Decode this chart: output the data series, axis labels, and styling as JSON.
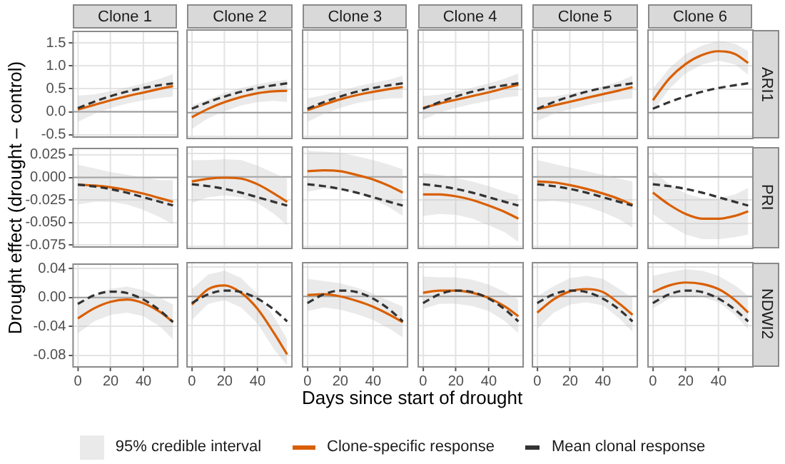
{
  "chart_data": [
    {
      "type": "line",
      "title": "Clone 1",
      "tick_labels": "y",
      "legend": "bottom",
      "annotations": [
        "95% credible interval"
      ],
      "x": [
        0,
        10,
        20,
        30,
        40,
        50,
        58
      ],
      "xlim": [
        -2.9,
        60.9
      ],
      "xticks": [
        {
          "value": 0,
          "label": null
        },
        {
          "value": 20,
          "label": null
        },
        {
          "value": 40,
          "label": null
        }
      ],
      "ylim": [
        -0.55,
        1.75
      ],
      "yticks": [
        {
          "value": -0.5,
          "label": "-0.5"
        },
        {
          "value": 0,
          "label": "0.0"
        },
        {
          "value": 0.5,
          "label": "0.5"
        },
        {
          "value": 1,
          "label": "1.0"
        },
        {
          "value": 1.5,
          "label": "1.5"
        }
      ],
      "grid": true,
      "ref_lines": [
        {
          "axis": "y",
          "value": 0
        }
      ],
      "series": [
        {
          "name": "Clone-specific response",
          "color": "#d95f02",
          "values": [
            0.05,
            0.15,
            0.25,
            0.34,
            0.42,
            0.5,
            0.56
          ],
          "lower": [
            -0.22,
            -0.05,
            0.08,
            0.18,
            0.25,
            0.3,
            0.33
          ],
          "upper": [
            0.35,
            0.38,
            0.45,
            0.53,
            0.62,
            0.72,
            0.82
          ]
        },
        {
          "name": "Mean clonal response",
          "color": "#333333",
          "line_style": "dashed",
          "values": [
            0.08,
            0.22,
            0.34,
            0.44,
            0.52,
            0.58,
            0.62
          ]
        }
      ]
    },
    {
      "type": "line",
      "title": "Clone 2",
      "tick_labels": false,
      "x": [
        0,
        10,
        20,
        30,
        40,
        50,
        58
      ],
      "xlim": [
        -2.9,
        60.9
      ],
      "xticks": [
        {
          "value": 0,
          "label": null
        },
        {
          "value": 20,
          "label": null
        },
        {
          "value": 40,
          "label": null
        }
      ],
      "ylim": [
        -0.55,
        1.75
      ],
      "yticks": [
        {
          "value": -0.5,
          "label": null
        },
        {
          "value": 0,
          "label": null
        },
        {
          "value": 0.5,
          "label": null
        },
        {
          "value": 1,
          "label": null
        },
        {
          "value": 1.5,
          "label": null
        }
      ],
      "grid": true,
      "ref_lines": [
        {
          "axis": "y",
          "value": 0
        }
      ],
      "series": [
        {
          "color": "#d95f02",
          "values": [
            -0.1,
            0.08,
            0.22,
            0.33,
            0.41,
            0.45,
            0.46
          ],
          "lower": [
            -0.35,
            -0.12,
            0.03,
            0.15,
            0.22,
            0.25,
            0.22
          ],
          "upper": [
            0.15,
            0.28,
            0.42,
            0.52,
            0.6,
            0.66,
            0.7
          ]
        },
        {
          "color": "#333333",
          "line_style": "dashed",
          "values": [
            0.08,
            0.22,
            0.34,
            0.44,
            0.52,
            0.58,
            0.62
          ]
        }
      ]
    },
    {
      "type": "line",
      "title": "Clone 3",
      "tick_labels": false,
      "x": [
        0,
        10,
        20,
        30,
        40,
        50,
        58
      ],
      "xlim": [
        -2.9,
        60.9
      ],
      "xticks": [
        {
          "value": 0,
          "label": null
        },
        {
          "value": 20,
          "label": null
        },
        {
          "value": 40,
          "label": null
        }
      ],
      "ylim": [
        -0.55,
        1.75
      ],
      "yticks": [
        {
          "value": -0.5,
          "label": null
        },
        {
          "value": 0,
          "label": null
        },
        {
          "value": 0.5,
          "label": null
        },
        {
          "value": 1,
          "label": null
        },
        {
          "value": 1.5,
          "label": null
        }
      ],
      "grid": true,
      "ref_lines": [
        {
          "axis": "y",
          "value": 0
        }
      ],
      "series": [
        {
          "color": "#d95f02",
          "values": [
            0.05,
            0.17,
            0.28,
            0.37,
            0.44,
            0.5,
            0.54
          ],
          "lower": [
            -0.2,
            -0.03,
            0.1,
            0.2,
            0.26,
            0.3,
            0.3
          ],
          "upper": [
            0.3,
            0.37,
            0.46,
            0.55,
            0.63,
            0.7,
            0.78
          ]
        },
        {
          "color": "#333333",
          "line_style": "dashed",
          "values": [
            0.08,
            0.22,
            0.34,
            0.44,
            0.52,
            0.58,
            0.62
          ]
        }
      ]
    },
    {
      "type": "line",
      "title": "Clone 4",
      "tick_labels": false,
      "x": [
        0,
        10,
        20,
        30,
        40,
        50,
        58
      ],
      "xlim": [
        -2.9,
        60.9
      ],
      "xticks": [
        {
          "value": 0,
          "label": null
        },
        {
          "value": 20,
          "label": null
        },
        {
          "value": 40,
          "label": null
        }
      ],
      "ylim": [
        -0.55,
        1.75
      ],
      "yticks": [
        {
          "value": -0.5,
          "label": null
        },
        {
          "value": 0,
          "label": null
        },
        {
          "value": 0.5,
          "label": null
        },
        {
          "value": 1,
          "label": null
        },
        {
          "value": 1.5,
          "label": null
        }
      ],
      "grid": true,
      "ref_lines": [
        {
          "axis": "y",
          "value": 0
        }
      ],
      "series": [
        {
          "color": "#d95f02",
          "values": [
            0.1,
            0.19,
            0.27,
            0.35,
            0.43,
            0.52,
            0.59
          ],
          "lower": [
            -0.15,
            0.0,
            0.1,
            0.18,
            0.25,
            0.32,
            0.35
          ],
          "upper": [
            0.35,
            0.38,
            0.45,
            0.53,
            0.62,
            0.72,
            0.83
          ]
        },
        {
          "color": "#333333",
          "line_style": "dashed",
          "values": [
            0.08,
            0.22,
            0.34,
            0.44,
            0.52,
            0.58,
            0.62
          ]
        }
      ]
    },
    {
      "type": "line",
      "title": "Clone 5",
      "tick_labels": false,
      "x": [
        0,
        10,
        20,
        30,
        40,
        50,
        58
      ],
      "xlim": [
        -2.9,
        60.9
      ],
      "xticks": [
        {
          "value": 0,
          "label": null
        },
        {
          "value": 20,
          "label": null
        },
        {
          "value": 40,
          "label": null
        }
      ],
      "ylim": [
        -0.55,
        1.75
      ],
      "yticks": [
        {
          "value": -0.5,
          "label": null
        },
        {
          "value": 0,
          "label": null
        },
        {
          "value": 0.5,
          "label": null
        },
        {
          "value": 1,
          "label": null
        },
        {
          "value": 1.5,
          "label": null
        }
      ],
      "grid": true,
      "ref_lines": [
        {
          "axis": "y",
          "value": 0
        }
      ],
      "series": [
        {
          "color": "#d95f02",
          "values": [
            0.07,
            0.15,
            0.23,
            0.31,
            0.39,
            0.47,
            0.54
          ],
          "lower": [
            -0.18,
            -0.03,
            0.07,
            0.15,
            0.22,
            0.27,
            0.3
          ],
          "upper": [
            0.32,
            0.34,
            0.4,
            0.48,
            0.56,
            0.66,
            0.78
          ]
        },
        {
          "color": "#333333",
          "line_style": "dashed",
          "values": [
            0.08,
            0.22,
            0.34,
            0.44,
            0.52,
            0.58,
            0.62
          ]
        }
      ]
    },
    {
      "type": "line",
      "title": "Clone 6",
      "y2label": "ARI1",
      "tick_labels": false,
      "x": [
        0,
        10,
        20,
        30,
        40,
        50,
        58
      ],
      "xlim": [
        -2.9,
        60.9
      ],
      "xticks": [
        {
          "value": 0,
          "label": null
        },
        {
          "value": 20,
          "label": null
        },
        {
          "value": 40,
          "label": null
        }
      ],
      "ylim": [
        -0.55,
        1.75
      ],
      "yticks": [
        {
          "value": -0.5,
          "label": null
        },
        {
          "value": 0,
          "label": null
        },
        {
          "value": 0.5,
          "label": null
        },
        {
          "value": 1,
          "label": null
        },
        {
          "value": 1.5,
          "label": null
        }
      ],
      "grid": true,
      "ref_lines": [
        {
          "axis": "y",
          "value": 0
        }
      ],
      "series": [
        {
          "color": "#d95f02",
          "values": [
            0.26,
            0.72,
            1.03,
            1.22,
            1.3,
            1.24,
            1.05
          ],
          "lower": [
            0.02,
            0.5,
            0.83,
            1.02,
            1.1,
            1.02,
            0.8
          ],
          "upper": [
            0.5,
            0.94,
            1.24,
            1.42,
            1.52,
            1.46,
            1.3
          ]
        },
        {
          "color": "#333333",
          "line_style": "dashed",
          "values": [
            0.08,
            0.22,
            0.34,
            0.44,
            0.52,
            0.58,
            0.62
          ]
        }
      ]
    },
    {
      "type": "line",
      "ylabel": "Drought effect (drought – control)",
      "tick_labels": "y",
      "x": [
        0,
        10,
        20,
        30,
        40,
        50,
        58
      ],
      "xlim": [
        -2.9,
        60.9
      ],
      "xticks": [
        {
          "value": 0,
          "label": null
        },
        {
          "value": 20,
          "label": null
        },
        {
          "value": 40,
          "label": null
        }
      ],
      "ylim": [
        -0.077,
        0.032
      ],
      "yticks": [
        {
          "value": -0.075,
          "label": "-0.075"
        },
        {
          "value": -0.05,
          "label": "-0.050"
        },
        {
          "value": -0.025,
          "label": "-0.025"
        },
        {
          "value": 0,
          "label": "0.000"
        },
        {
          "value": 0.025,
          "label": "0.025"
        }
      ],
      "grid": true,
      "ref_lines": [
        {
          "axis": "y",
          "value": 0
        }
      ],
      "series": [
        {
          "color": "#d95f02",
          "values": [
            -0.008,
            -0.009,
            -0.011,
            -0.014,
            -0.018,
            -0.023,
            -0.027
          ],
          "lower": [
            -0.03,
            -0.027,
            -0.027,
            -0.03,
            -0.036,
            -0.044,
            -0.052
          ],
          "upper": [
            0.014,
            0.01,
            0.006,
            0.003,
            0,
            -0.003,
            -0.003
          ]
        },
        {
          "color": "#333333",
          "line_style": "dashed",
          "values": [
            -0.008,
            -0.01,
            -0.013,
            -0.017,
            -0.022,
            -0.027,
            -0.031
          ]
        }
      ]
    },
    {
      "type": "line",
      "tick_labels": false,
      "x": [
        0,
        10,
        20,
        30,
        40,
        50,
        58
      ],
      "xlim": [
        -2.9,
        60.9
      ],
      "xticks": [
        {
          "value": 0,
          "label": null
        },
        {
          "value": 20,
          "label": null
        },
        {
          "value": 40,
          "label": null
        }
      ],
      "ylim": [
        -0.077,
        0.032
      ],
      "yticks": [
        {
          "value": -0.075,
          "label": null
        },
        {
          "value": -0.05,
          "label": null
        },
        {
          "value": -0.025,
          "label": null
        },
        {
          "value": 0,
          "label": null
        },
        {
          "value": 0.025,
          "label": null
        }
      ],
      "grid": true,
      "ref_lines": [
        {
          "axis": "y",
          "value": 0
        }
      ],
      "series": [
        {
          "color": "#d95f02",
          "values": [
            -0.005,
            -0.002,
            -0.001,
            -0.002,
            -0.008,
            -0.018,
            -0.027
          ],
          "lower": [
            -0.028,
            -0.022,
            -0.02,
            -0.022,
            -0.028,
            -0.04,
            -0.052
          ],
          "upper": [
            0.018,
            0.018,
            0.019,
            0.018,
            0.012,
            0.004,
            -0.002
          ]
        },
        {
          "color": "#333333",
          "line_style": "dashed",
          "values": [
            -0.008,
            -0.01,
            -0.013,
            -0.017,
            -0.022,
            -0.027,
            -0.031
          ]
        }
      ]
    },
    {
      "type": "line",
      "tick_labels": false,
      "x": [
        0,
        10,
        20,
        30,
        40,
        50,
        58
      ],
      "xlim": [
        -2.9,
        60.9
      ],
      "xticks": [
        {
          "value": 0,
          "label": null
        },
        {
          "value": 20,
          "label": null
        },
        {
          "value": 40,
          "label": null
        }
      ],
      "ylim": [
        -0.077,
        0.032
      ],
      "yticks": [
        {
          "value": -0.075,
          "label": null
        },
        {
          "value": -0.05,
          "label": null
        },
        {
          "value": -0.025,
          "label": null
        },
        {
          "value": 0,
          "label": null
        },
        {
          "value": 0.025,
          "label": null
        }
      ],
      "grid": true,
      "ref_lines": [
        {
          "axis": "y",
          "value": 0
        }
      ],
      "series": [
        {
          "color": "#d95f02",
          "values": [
            0.006,
            0.007,
            0.006,
            0.002,
            -0.003,
            -0.01,
            -0.017
          ],
          "lower": [
            -0.016,
            -0.013,
            -0.014,
            -0.018,
            -0.024,
            -0.033,
            -0.042
          ],
          "upper": [
            0.028,
            0.027,
            0.026,
            0.022,
            0.018,
            0.013,
            0.008
          ]
        },
        {
          "color": "#333333",
          "line_style": "dashed",
          "values": [
            -0.008,
            -0.01,
            -0.013,
            -0.017,
            -0.022,
            -0.027,
            -0.031
          ]
        }
      ]
    },
    {
      "type": "line",
      "tick_labels": false,
      "x": [
        0,
        10,
        20,
        30,
        40,
        50,
        58
      ],
      "xlim": [
        -2.9,
        60.9
      ],
      "xticks": [
        {
          "value": 0,
          "label": null
        },
        {
          "value": 20,
          "label": null
        },
        {
          "value": 40,
          "label": null
        }
      ],
      "ylim": [
        -0.077,
        0.032
      ],
      "yticks": [
        {
          "value": -0.075,
          "label": null
        },
        {
          "value": -0.05,
          "label": null
        },
        {
          "value": -0.025,
          "label": null
        },
        {
          "value": 0,
          "label": null
        },
        {
          "value": 0.025,
          "label": null
        }
      ],
      "grid": true,
      "ref_lines": [
        {
          "axis": "y",
          "value": 0
        }
      ],
      "series": [
        {
          "color": "#d95f02",
          "values": [
            -0.019,
            -0.019,
            -0.021,
            -0.025,
            -0.031,
            -0.038,
            -0.045
          ],
          "lower": [
            -0.042,
            -0.04,
            -0.041,
            -0.045,
            -0.052,
            -0.06,
            -0.07
          ],
          "upper": [
            0.004,
            0.002,
            -0.001,
            -0.005,
            -0.01,
            -0.016,
            -0.02
          ]
        },
        {
          "color": "#333333",
          "line_style": "dashed",
          "values": [
            -0.008,
            -0.01,
            -0.013,
            -0.017,
            -0.022,
            -0.027,
            -0.031
          ]
        }
      ]
    },
    {
      "type": "line",
      "tick_labels": false,
      "x": [
        0,
        10,
        20,
        30,
        40,
        50,
        58
      ],
      "xlim": [
        -2.9,
        60.9
      ],
      "xticks": [
        {
          "value": 0,
          "label": null
        },
        {
          "value": 20,
          "label": null
        },
        {
          "value": 40,
          "label": null
        }
      ],
      "ylim": [
        -0.077,
        0.032
      ],
      "yticks": [
        {
          "value": -0.075,
          "label": null
        },
        {
          "value": -0.05,
          "label": null
        },
        {
          "value": -0.025,
          "label": null
        },
        {
          "value": 0,
          "label": null
        },
        {
          "value": 0.025,
          "label": null
        }
      ],
      "grid": true,
      "ref_lines": [
        {
          "axis": "y",
          "value": 0
        }
      ],
      "series": [
        {
          "color": "#d95f02",
          "values": [
            -0.005,
            -0.006,
            -0.009,
            -0.013,
            -0.018,
            -0.024,
            -0.03
          ],
          "lower": [
            -0.027,
            -0.026,
            -0.028,
            -0.032,
            -0.038,
            -0.046,
            -0.055
          ],
          "upper": [
            0.018,
            0.014,
            0.01,
            0.006,
            0.002,
            -0.002,
            -0.005
          ]
        },
        {
          "color": "#333333",
          "line_style": "dashed",
          "values": [
            -0.008,
            -0.01,
            -0.013,
            -0.017,
            -0.022,
            -0.027,
            -0.031
          ]
        }
      ]
    },
    {
      "type": "line",
      "y2label": "PRI",
      "tick_labels": false,
      "x": [
        0,
        10,
        20,
        30,
        40,
        50,
        58
      ],
      "xlim": [
        -2.9,
        60.9
      ],
      "xticks": [
        {
          "value": 0,
          "label": null
        },
        {
          "value": 20,
          "label": null
        },
        {
          "value": 40,
          "label": null
        }
      ],
      "ylim": [
        -0.077,
        0.032
      ],
      "yticks": [
        {
          "value": -0.075,
          "label": null
        },
        {
          "value": -0.05,
          "label": null
        },
        {
          "value": -0.025,
          "label": null
        },
        {
          "value": 0,
          "label": null
        },
        {
          "value": 0.025,
          "label": null
        }
      ],
      "grid": true,
      "ref_lines": [
        {
          "axis": "y",
          "value": 0
        }
      ],
      "series": [
        {
          "color": "#d95f02",
          "values": [
            -0.017,
            -0.03,
            -0.04,
            -0.045,
            -0.045,
            -0.042,
            -0.037
          ],
          "lower": [
            -0.04,
            -0.052,
            -0.062,
            -0.067,
            -0.067,
            -0.065,
            -0.062
          ],
          "upper": [
            0.006,
            -0.008,
            -0.018,
            -0.023,
            -0.023,
            -0.019,
            -0.012
          ]
        },
        {
          "color": "#333333",
          "line_style": "dashed",
          "values": [
            -0.008,
            -0.01,
            -0.013,
            -0.017,
            -0.022,
            -0.027,
            -0.031
          ]
        }
      ]
    },
    {
      "type": "line",
      "x": [
        0,
        10,
        20,
        30,
        40,
        50,
        58
      ],
      "xlim": [
        -2.9,
        60.9
      ],
      "xticks": [
        0,
        20,
        40
      ],
      "ylim": [
        -0.096,
        0.046
      ],
      "yticks": [
        {
          "value": -0.08,
          "label": "-0.08"
        },
        {
          "value": -0.04,
          "label": "-0.04"
        },
        {
          "value": 0,
          "label": "0.00"
        },
        {
          "value": 0.04,
          "label": "0.04"
        }
      ],
      "grid": true,
      "ref_lines": [
        {
          "axis": "y",
          "value": 0
        }
      ],
      "series": [
        {
          "color": "#d95f02",
          "values": [
            -0.029,
            -0.015,
            -0.006,
            -0.003,
            -0.008,
            -0.02,
            -0.034
          ],
          "lower": [
            -0.05,
            -0.033,
            -0.024,
            -0.021,
            -0.026,
            -0.04,
            -0.058
          ],
          "upper": [
            -0.008,
            0.003,
            0.012,
            0.015,
            0.01,
            0.0,
            -0.01
          ]
        },
        {
          "color": "#333333",
          "line_style": "dashed",
          "values": [
            -0.009,
            0.003,
            0.008,
            0.006,
            -0.003,
            -0.018,
            -0.034
          ]
        }
      ]
    },
    {
      "type": "line",
      "tick_labels": "x",
      "x": [
        0,
        10,
        20,
        30,
        40,
        50,
        58
      ],
      "xlim": [
        -2.9,
        60.9
      ],
      "xticks": [
        0,
        20,
        40
      ],
      "ylim": [
        -0.096,
        0.046
      ],
      "yticks": [
        {
          "value": -0.08,
          "label": null
        },
        {
          "value": -0.04,
          "label": null
        },
        {
          "value": 0,
          "label": null
        },
        {
          "value": 0.04,
          "label": null
        }
      ],
      "grid": true,
      "ref_lines": [
        {
          "axis": "y",
          "value": 0
        }
      ],
      "series": [
        {
          "color": "#d95f02",
          "values": [
            -0.011,
            0.01,
            0.015,
            0.005,
            -0.017,
            -0.05,
            -0.079
          ],
          "lower": [
            -0.032,
            -0.01,
            -0.005,
            -0.015,
            -0.037,
            -0.072,
            -0.094
          ],
          "upper": [
            0.01,
            0.03,
            0.035,
            0.025,
            0.003,
            -0.028,
            -0.058
          ]
        },
        {
          "color": "#333333",
          "line_style": "dashed",
          "values": [
            -0.009,
            0.003,
            0.008,
            0.006,
            -0.003,
            -0.018,
            -0.034
          ]
        }
      ]
    },
    {
      "type": "line",
      "xlabel": "Days since start of drought",
      "tick_labels": "x",
      "x": [
        0,
        10,
        20,
        30,
        40,
        50,
        58
      ],
      "xlim": [
        -2.9,
        60.9
      ],
      "xticks": [
        0,
        20,
        40
      ],
      "ylim": [
        -0.096,
        0.046
      ],
      "yticks": [
        {
          "value": -0.08,
          "label": null
        },
        {
          "value": -0.04,
          "label": null
        },
        {
          "value": 0,
          "label": null
        },
        {
          "value": 0.04,
          "label": null
        }
      ],
      "grid": true,
      "ref_lines": [
        {
          "axis": "y",
          "value": 0
        }
      ],
      "series": [
        {
          "color": "#d95f02",
          "values": [
            0.002,
            0.003,
            0,
            -0.006,
            -0.014,
            -0.025,
            -0.035
          ],
          "lower": [
            -0.02,
            -0.015,
            -0.018,
            -0.024,
            -0.032,
            -0.044,
            -0.056
          ],
          "upper": [
            0.024,
            0.021,
            0.018,
            0.012,
            0.004,
            -0.006,
            -0.014
          ]
        },
        {
          "color": "#333333",
          "line_style": "dashed",
          "values": [
            -0.009,
            0.003,
            0.008,
            0.006,
            -0.003,
            -0.018,
            -0.034
          ]
        }
      ]
    },
    {
      "type": "line",
      "tick_labels": "x",
      "x": [
        0,
        10,
        20,
        30,
        40,
        50,
        58
      ],
      "xlim": [
        -2.9,
        60.9
      ],
      "xticks": [
        0,
        20,
        40
      ],
      "ylim": [
        -0.096,
        0.046
      ],
      "yticks": [
        {
          "value": -0.08,
          "label": null
        },
        {
          "value": -0.04,
          "label": null
        },
        {
          "value": 0,
          "label": null
        },
        {
          "value": 0.04,
          "label": null
        }
      ],
      "grid": true,
      "ref_lines": [
        {
          "axis": "y",
          "value": 0
        }
      ],
      "series": [
        {
          "color": "#d95f02",
          "values": [
            0.005,
            0.008,
            0.008,
            0.005,
            -0.002,
            -0.014,
            -0.027
          ],
          "lower": [
            -0.017,
            -0.01,
            -0.01,
            -0.013,
            -0.02,
            -0.034,
            -0.05
          ],
          "upper": [
            0.027,
            0.026,
            0.026,
            0.023,
            0.016,
            0.006,
            -0.004
          ]
        },
        {
          "color": "#333333",
          "line_style": "dashed",
          "values": [
            -0.009,
            0.003,
            0.008,
            0.006,
            -0.003,
            -0.018,
            -0.034
          ]
        }
      ]
    },
    {
      "type": "line",
      "tick_labels": "x",
      "x": [
        0,
        10,
        20,
        30,
        40,
        50,
        58
      ],
      "xlim": [
        -2.9,
        60.9
      ],
      "xticks": [
        0,
        20,
        40
      ],
      "ylim": [
        -0.096,
        0.046
      ],
      "yticks": [
        {
          "value": -0.08,
          "label": null
        },
        {
          "value": -0.04,
          "label": null
        },
        {
          "value": 0,
          "label": null
        },
        {
          "value": 0.04,
          "label": null
        }
      ],
      "grid": true,
      "ref_lines": [
        {
          "axis": "y",
          "value": 0
        }
      ],
      "series": [
        {
          "color": "#d95f02",
          "values": [
            -0.022,
            -0.004,
            0.007,
            0.01,
            0.006,
            -0.01,
            -0.025
          ],
          "lower": [
            -0.044,
            -0.022,
            -0.011,
            -0.008,
            -0.012,
            -0.03,
            -0.048
          ],
          "upper": [
            0,
            0.014,
            0.025,
            0.028,
            0.024,
            0.01,
            -0.002
          ]
        },
        {
          "color": "#333333",
          "line_style": "dashed",
          "values": [
            -0.009,
            0.003,
            0.008,
            0.006,
            -0.003,
            -0.018,
            -0.034
          ]
        }
      ]
    },
    {
      "type": "line",
      "y2label": "NDWI2",
      "tick_labels": "x",
      "x": [
        0,
        10,
        20,
        30,
        40,
        50,
        58
      ],
      "xlim": [
        -2.9,
        60.9
      ],
      "xticks": [
        0,
        20,
        40
      ],
      "ylim": [
        -0.096,
        0.046
      ],
      "yticks": [
        {
          "value": -0.08,
          "label": null
        },
        {
          "value": -0.04,
          "label": null
        },
        {
          "value": 0,
          "label": null
        },
        {
          "value": 0.04,
          "label": null
        }
      ],
      "grid": true,
      "ref_lines": [
        {
          "axis": "y",
          "value": 0
        }
      ],
      "series": [
        {
          "color": "#d95f02",
          "values": [
            0.006,
            0.015,
            0.019,
            0.017,
            0.01,
            -0.005,
            -0.022
          ],
          "lower": [
            -0.016,
            -0.003,
            0.001,
            -0.001,
            -0.008,
            -0.025,
            -0.045
          ],
          "upper": [
            0.028,
            0.033,
            0.037,
            0.035,
            0.028,
            0.015,
            0.001
          ]
        },
        {
          "color": "#333333",
          "line_style": "dashed",
          "values": [
            -0.009,
            0.003,
            0.008,
            0.006,
            -0.003,
            -0.018,
            -0.034
          ]
        }
      ]
    }
  ]
}
